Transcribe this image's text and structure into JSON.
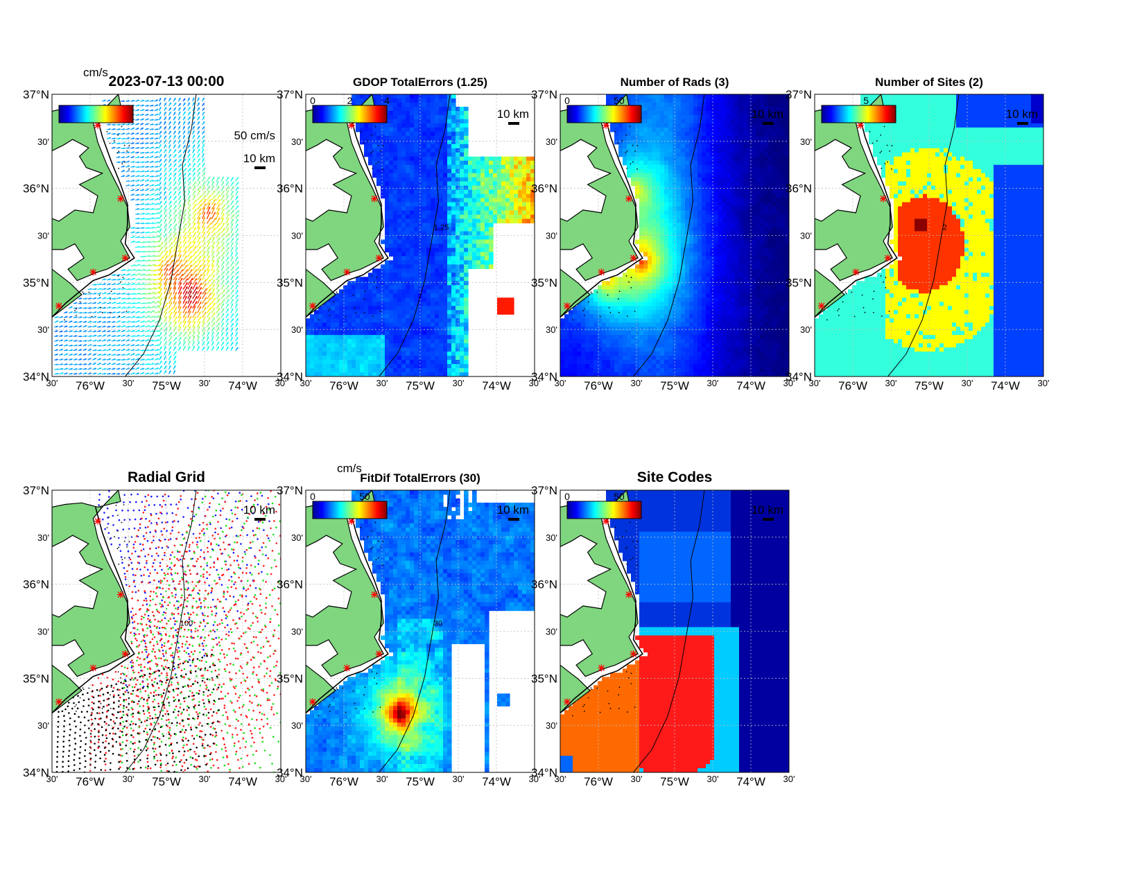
{
  "colors": {
    "land": "#7fd67f",
    "coast": "#000000",
    "grid": "#bbbbbb",
    "site_marker": "#ff0000"
  },
  "panels": [
    {
      "id": "current-vectors",
      "title": "2023-07-13 00:00",
      "title_style": "big",
      "colorbar": {
        "unit": "cm/s",
        "ticks": []
      },
      "vector_scale_label": "50 cm/s",
      "scale_label": "10 km",
      "kind": "vectors",
      "ylabels": [
        "37°N",
        "30'",
        "36°N",
        "30'",
        "35°N",
        "30'",
        "34°N"
      ],
      "xlabels": [
        "30'",
        "76°W",
        "30'",
        "75°W",
        "30'",
        "74°W",
        "30'"
      ]
    },
    {
      "id": "gdop-total-errors",
      "title": "GDOP TotalErrors (1.25)",
      "title_style": "normal",
      "colorbar": {
        "unit": "",
        "ticks": [
          "0",
          "2",
          "4"
        ]
      },
      "scale_label": "10 km",
      "contour_value": "1.25",
      "kind": "gdop",
      "ylabels": [
        "37°N",
        "30'",
        "36°N",
        "30'",
        "35°N",
        "30'",
        "34°N"
      ],
      "xlabels": [
        "30'",
        "76°W",
        "30'",
        "75°W",
        "30'",
        "74°W",
        "30'"
      ]
    },
    {
      "id": "number-of-rads",
      "title": "Number of Rads (3)",
      "title_style": "normal",
      "colorbar": {
        "unit": "",
        "ticks": [
          "0",
          "50"
        ]
      },
      "scale_label": "10 km",
      "kind": "rads",
      "ylabels": [
        "37°N",
        "30'",
        "36°N",
        "30'",
        "35°N",
        "30'",
        "34°N"
      ],
      "xlabels": [
        "30'",
        "76°W",
        "30'",
        "75°W",
        "30'",
        "74°W",
        "30'"
      ]
    },
    {
      "id": "number-of-sites",
      "title": "Number of Sites (2)",
      "title_style": "normal",
      "colorbar": {
        "unit": "",
        "ticks": [
          "5"
        ]
      },
      "scale_label": "10 km",
      "contour_value": "2",
      "kind": "sites",
      "ylabels": [
        "37°N",
        "30'",
        "36°N",
        "30'",
        "35°N",
        "30'",
        "34°N"
      ],
      "xlabels": [
        "30'",
        "76°W",
        "30'",
        "75°W",
        "30'",
        "74°W",
        "30'"
      ]
    },
    {
      "id": "radial-grid",
      "title": "Radial Grid",
      "title_style": "big",
      "scale_label": "10 km",
      "contour_value": "100",
      "kind": "radial",
      "ylabels": [
        "37°N",
        "30'",
        "36°N",
        "30'",
        "35°N",
        "30'",
        "34°N"
      ],
      "xlabels": [
        "30'",
        "76°W",
        "30'",
        "75°W",
        "30'",
        "74°W",
        "30'"
      ]
    },
    {
      "id": "fitdif-total-errors",
      "title": "FitDif TotalErrors (30)",
      "title_style": "normal",
      "colorbar": {
        "unit": "cm/s",
        "ticks": [
          "0",
          "50"
        ]
      },
      "scale_label": "10 km",
      "contour_value": "30",
      "kind": "fitdif",
      "ylabels": [
        "37°N",
        "30'",
        "36°N",
        "30'",
        "35°N",
        "30'",
        "34°N"
      ],
      "xlabels": [
        "30'",
        "76°W",
        "30'",
        "75°W",
        "30'",
        "74°W",
        "30'"
      ]
    },
    {
      "id": "site-codes",
      "title": "Site Codes",
      "title_style": "big",
      "colorbar": {
        "unit": "",
        "ticks": [
          "0",
          "50"
        ]
      },
      "scale_label": "10 km",
      "kind": "codes",
      "ylabels": [
        "37°N",
        "30'",
        "36°N",
        "30'",
        "35°N",
        "30'",
        "34°N"
      ],
      "xlabels": [
        "30'",
        "76°W",
        "30'",
        "75°W",
        "30'",
        "74°W",
        "30'"
      ]
    }
  ]
}
